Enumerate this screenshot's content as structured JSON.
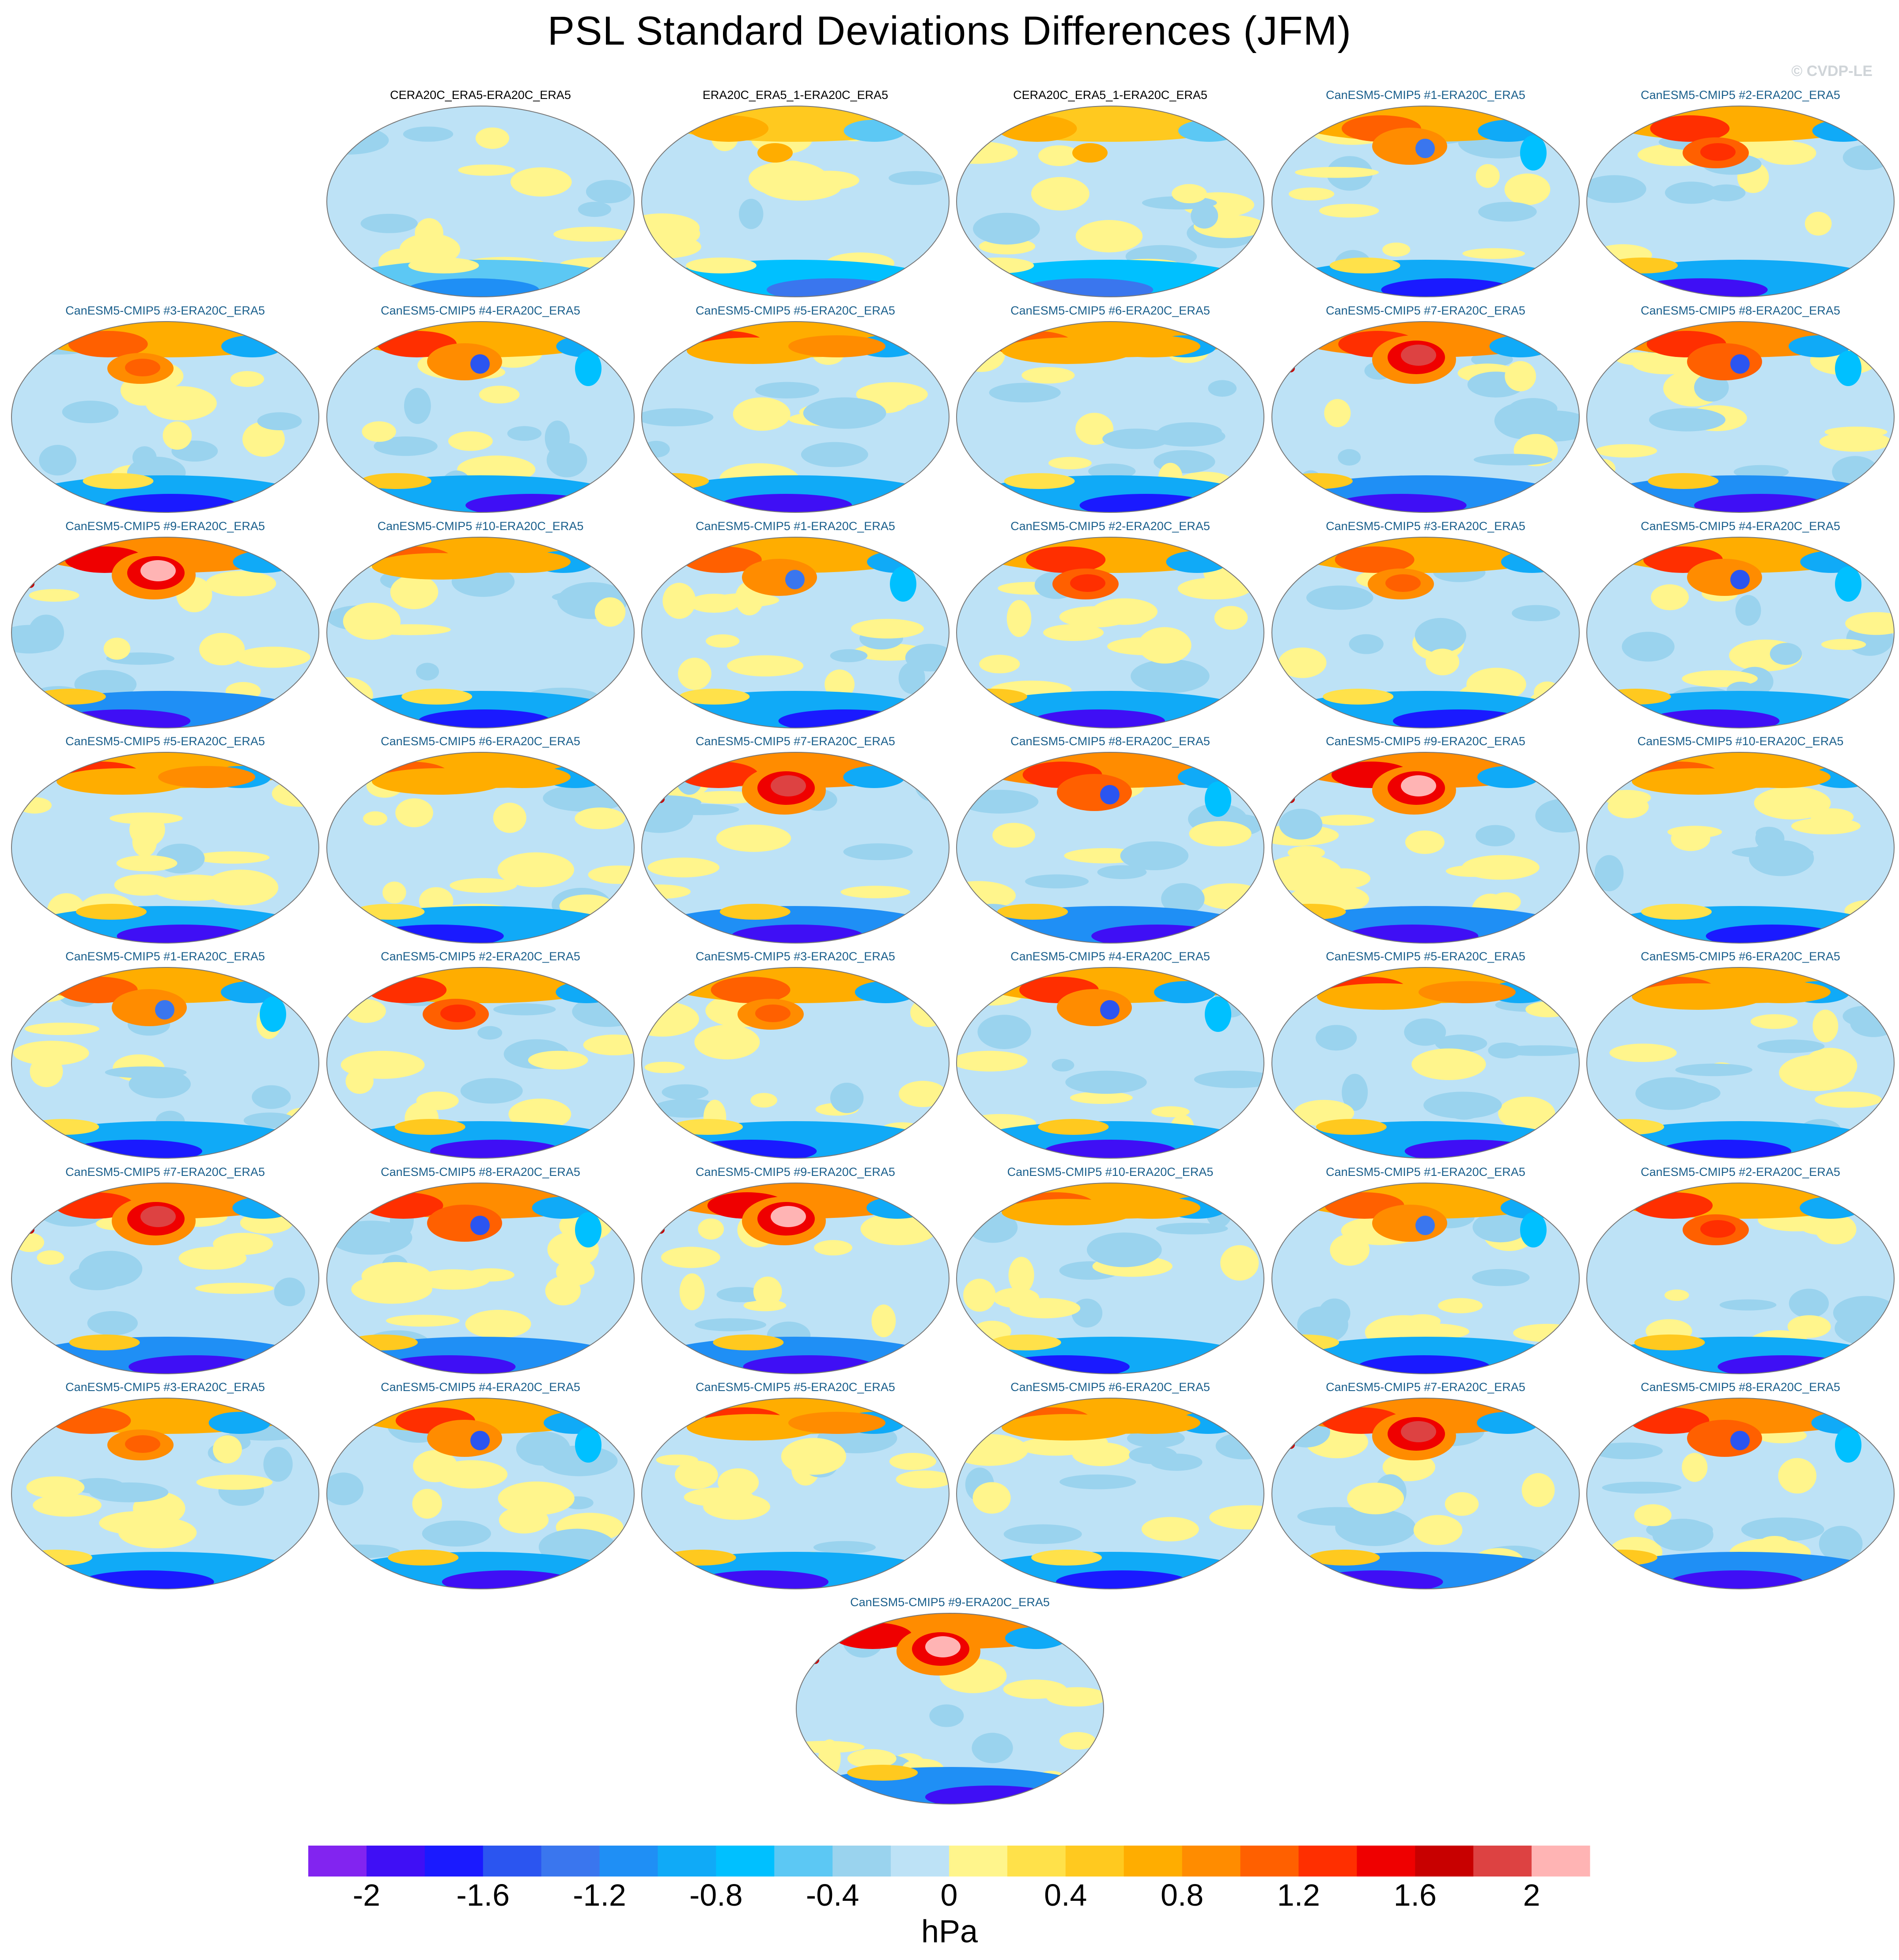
{
  "title": "PSL Standard Deviations Differences (JFM)",
  "watermark": "© CVDP-LE",
  "panels": [
    {
      "label": "CERA20C_ERA5-ERA20C_ERA5",
      "kind": "obs",
      "pattern": "flat",
      "intensity": 0.0
    },
    {
      "label": "ERA20C_ERA5_1-ERA20C_ERA5",
      "kind": "obs",
      "pattern": "flat2",
      "intensity": 0.2
    },
    {
      "label": "CERA20C_ERA5_1-ERA20C_ERA5",
      "kind": "obs",
      "pattern": "flat2",
      "intensity": 0.2
    },
    {
      "label": "CanESM5-CMIP5 #1-ERA20C_ERA5",
      "kind": "model",
      "pattern": "dipole",
      "intensity": 0.7
    },
    {
      "label": "CanESM5-CMIP5 #2-ERA20C_ERA5",
      "kind": "model",
      "pattern": "center",
      "intensity": 0.8
    },
    {
      "label": "CanESM5-CMIP5 #3-ERA20C_ERA5",
      "kind": "model",
      "pattern": "center",
      "intensity": 0.7
    },
    {
      "label": "CanESM5-CMIP5 #4-ERA20C_ERA5",
      "kind": "model",
      "pattern": "dipole",
      "intensity": 0.8
    },
    {
      "label": "CanESM5-CMIP5 #5-ERA20C_ERA5",
      "kind": "model",
      "pattern": "band",
      "intensity": 0.8
    },
    {
      "label": "CanESM5-CMIP5 #6-ERA20C_ERA5",
      "kind": "model",
      "pattern": "band",
      "intensity": 0.7
    },
    {
      "label": "CanESM5-CMIP5 #7-ERA20C_ERA5",
      "kind": "model",
      "pattern": "peak",
      "intensity": 0.95
    },
    {
      "label": "CanESM5-CMIP5 #8-ERA20C_ERA5",
      "kind": "model",
      "pattern": "dipole",
      "intensity": 0.85
    },
    {
      "label": "CanESM5-CMIP5 #9-ERA20C_ERA5",
      "kind": "model",
      "pattern": "peak",
      "intensity": 1.0
    },
    {
      "label": "CanESM5-CMIP5 #10-ERA20C_ERA5",
      "kind": "model",
      "pattern": "band",
      "intensity": 0.7
    },
    {
      "label": "CanESM5-CMIP5 #1-ERA20C_ERA5",
      "kind": "model",
      "pattern": "dipole",
      "intensity": 0.7
    },
    {
      "label": "CanESM5-CMIP5 #2-ERA20C_ERA5",
      "kind": "model",
      "pattern": "center",
      "intensity": 0.8
    },
    {
      "label": "CanESM5-CMIP5 #3-ERA20C_ERA5",
      "kind": "model",
      "pattern": "center",
      "intensity": 0.7
    },
    {
      "label": "CanESM5-CMIP5 #4-ERA20C_ERA5",
      "kind": "model",
      "pattern": "dipole",
      "intensity": 0.8
    },
    {
      "label": "CanESM5-CMIP5 #5-ERA20C_ERA5",
      "kind": "model",
      "pattern": "band",
      "intensity": 0.8
    },
    {
      "label": "CanESM5-CMIP5 #6-ERA20C_ERA5",
      "kind": "model",
      "pattern": "band",
      "intensity": 0.7
    },
    {
      "label": "CanESM5-CMIP5 #7-ERA20C_ERA5",
      "kind": "model",
      "pattern": "peak",
      "intensity": 0.95
    },
    {
      "label": "CanESM5-CMIP5 #8-ERA20C_ERA5",
      "kind": "model",
      "pattern": "dipole",
      "intensity": 0.85
    },
    {
      "label": "CanESM5-CMIP5 #9-ERA20C_ERA5",
      "kind": "model",
      "pattern": "peak",
      "intensity": 1.0
    },
    {
      "label": "CanESM5-CMIP5 #10-ERA20C_ERA5",
      "kind": "model",
      "pattern": "band",
      "intensity": 0.7
    },
    {
      "label": "CanESM5-CMIP5 #1-ERA20C_ERA5",
      "kind": "model",
      "pattern": "dipole",
      "intensity": 0.7
    },
    {
      "label": "CanESM5-CMIP5 #2-ERA20C_ERA5",
      "kind": "model",
      "pattern": "center",
      "intensity": 0.8
    },
    {
      "label": "CanESM5-CMIP5 #3-ERA20C_ERA5",
      "kind": "model",
      "pattern": "center",
      "intensity": 0.7
    },
    {
      "label": "CanESM5-CMIP5 #4-ERA20C_ERA5",
      "kind": "model",
      "pattern": "dipole",
      "intensity": 0.8
    },
    {
      "label": "CanESM5-CMIP5 #5-ERA20C_ERA5",
      "kind": "model",
      "pattern": "band",
      "intensity": 0.8
    },
    {
      "label": "CanESM5-CMIP5 #6-ERA20C_ERA5",
      "kind": "model",
      "pattern": "band",
      "intensity": 0.7
    },
    {
      "label": "CanESM5-CMIP5 #7-ERA20C_ERA5",
      "kind": "model",
      "pattern": "peak",
      "intensity": 0.95
    },
    {
      "label": "CanESM5-CMIP5 #8-ERA20C_ERA5",
      "kind": "model",
      "pattern": "dipole",
      "intensity": 0.85
    },
    {
      "label": "CanESM5-CMIP5 #9-ERA20C_ERA5",
      "kind": "model",
      "pattern": "peak",
      "intensity": 1.0
    },
    {
      "label": "CanESM5-CMIP5 #10-ERA20C_ERA5",
      "kind": "model",
      "pattern": "band",
      "intensity": 0.7
    },
    {
      "label": "CanESM5-CMIP5 #1-ERA20C_ERA5",
      "kind": "model",
      "pattern": "dipole",
      "intensity": 0.7
    },
    {
      "label": "CanESM5-CMIP5 #2-ERA20C_ERA5",
      "kind": "model",
      "pattern": "center",
      "intensity": 0.8
    },
    {
      "label": "CanESM5-CMIP5 #3-ERA20C_ERA5",
      "kind": "model",
      "pattern": "center",
      "intensity": 0.7
    },
    {
      "label": "CanESM5-CMIP5 #4-ERA20C_ERA5",
      "kind": "model",
      "pattern": "dipole",
      "intensity": 0.8
    },
    {
      "label": "CanESM5-CMIP5 #5-ERA20C_ERA5",
      "kind": "model",
      "pattern": "band",
      "intensity": 0.8
    },
    {
      "label": "CanESM5-CMIP5 #6-ERA20C_ERA5",
      "kind": "model",
      "pattern": "band",
      "intensity": 0.7
    },
    {
      "label": "CanESM5-CMIP5 #7-ERA20C_ERA5",
      "kind": "model",
      "pattern": "peak",
      "intensity": 0.95
    },
    {
      "label": "CanESM5-CMIP5 #8-ERA20C_ERA5",
      "kind": "model",
      "pattern": "dipole",
      "intensity": 0.85
    },
    {
      "label": "CanESM5-CMIP5 #9-ERA20C_ERA5",
      "kind": "model",
      "pattern": "peak",
      "intensity": 1.0
    }
  ],
  "colorbar": {
    "unit": "hPa",
    "range": [
      -2.2,
      2.2
    ],
    "step": 0.2,
    "tick_labels": [
      "-2",
      "-1.6",
      "-1.2",
      "-0.8",
      "-0.4",
      "0",
      "0.4",
      "0.8",
      "1.2",
      "1.6",
      "2"
    ],
    "colors": [
      "#8224f0",
      "#3f0ff5",
      "#1a1aff",
      "#2b55f0",
      "#3a76ee",
      "#1f8ff5",
      "#10aaf7",
      "#00c0ff",
      "#5cc8f4",
      "#9ad3ee",
      "#bde2f6",
      "#fff58c",
      "#ffe14a",
      "#ffc91f",
      "#ffad00",
      "#ff8c00",
      "#ff6000",
      "#ff2f00",
      "#ef0000",
      "#c80000",
      "#dd4242",
      "#ffb4b4"
    ]
  }
}
